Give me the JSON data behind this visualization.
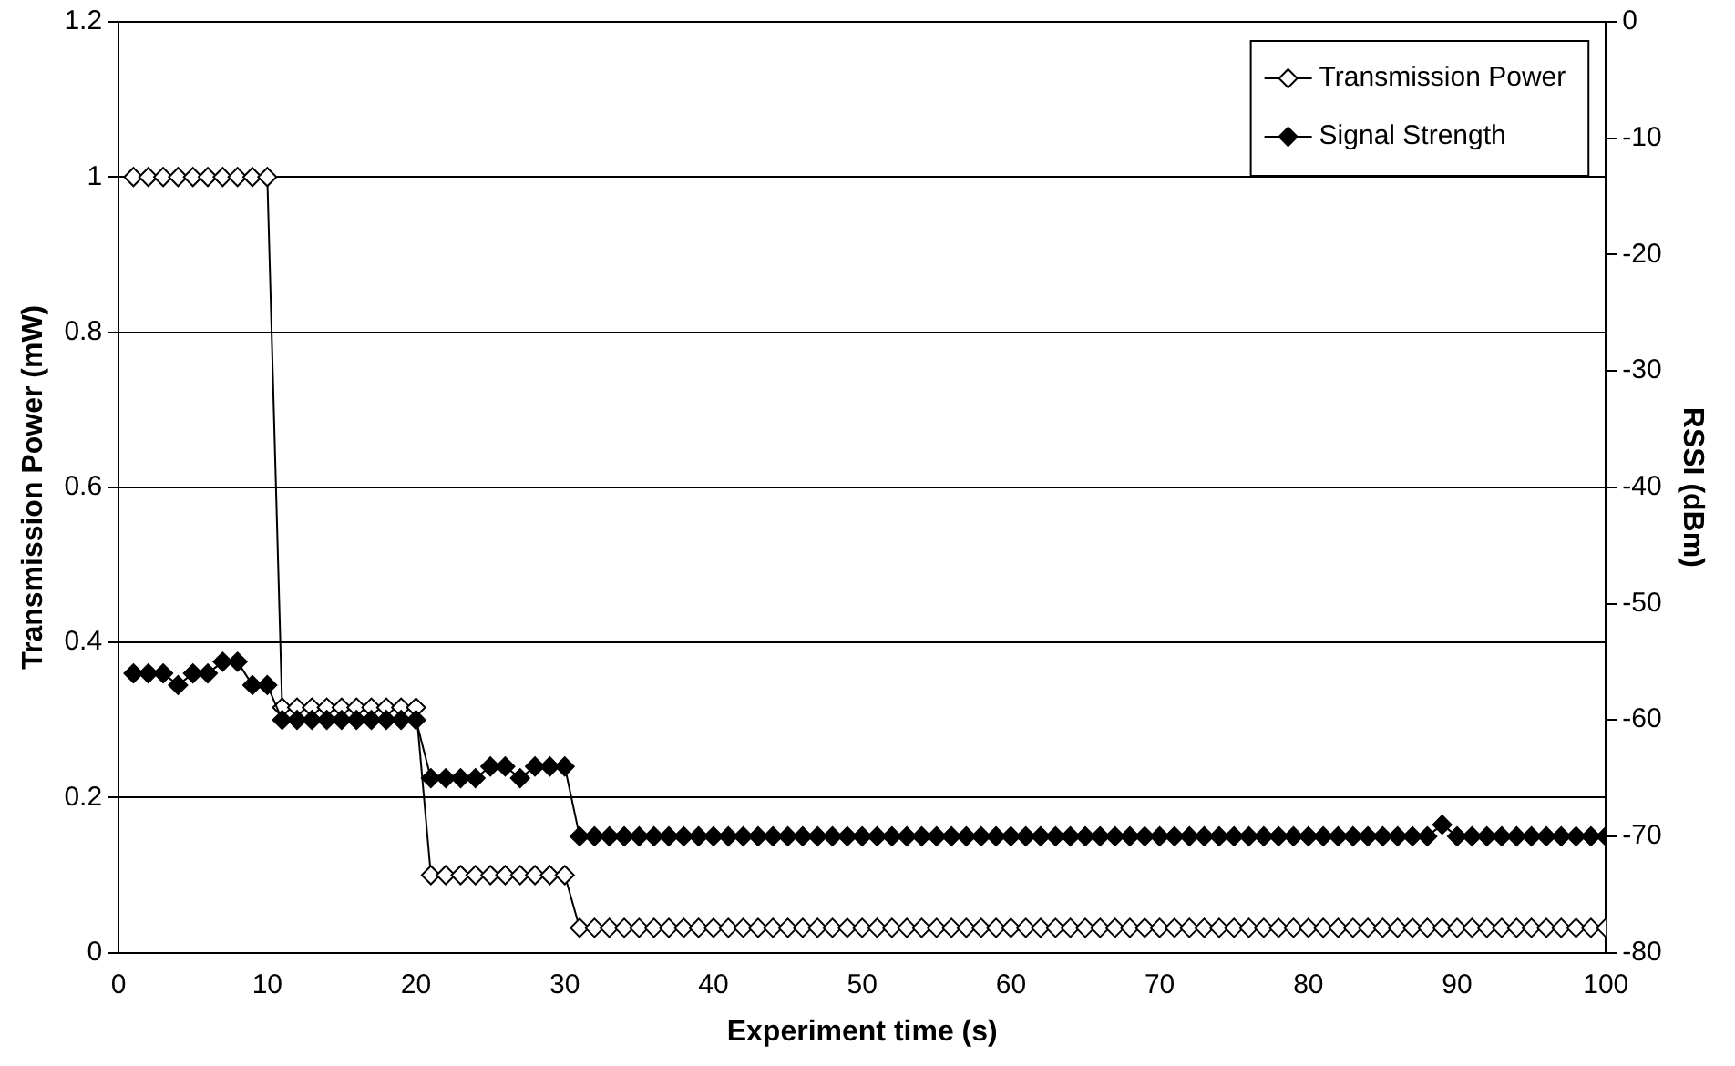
{
  "chart_data": {
    "type": "line",
    "xlabel": "Experiment time (s)",
    "ylabel": "Transmission Power (mW)",
    "y2label": "RSSI (dBm)",
    "x": [
      1,
      2,
      3,
      4,
      5,
      6,
      7,
      8,
      9,
      10,
      11,
      12,
      13,
      14,
      15,
      16,
      17,
      18,
      19,
      20,
      21,
      22,
      23,
      24,
      25,
      26,
      27,
      28,
      29,
      30,
      31,
      32,
      33,
      34,
      35,
      36,
      37,
      38,
      39,
      40,
      41,
      42,
      43,
      44,
      45,
      46,
      47,
      48,
      49,
      50,
      51,
      52,
      53,
      54,
      55,
      56,
      57,
      58,
      59,
      60,
      61,
      62,
      63,
      64,
      65,
      66,
      67,
      68,
      69,
      70,
      71,
      72,
      73,
      74,
      75,
      76,
      77,
      78,
      79,
      80,
      81,
      82,
      83,
      84,
      85,
      86,
      87,
      88,
      89,
      90,
      91,
      92,
      93,
      94,
      95,
      96,
      97,
      98,
      99,
      100
    ],
    "series": [
      {
        "name": "Transmission Power",
        "color": "#000000",
        "marker": "diamond",
        "values": [
          1,
          1,
          1,
          1,
          1,
          1,
          1,
          1,
          1,
          1,
          0.316,
          0.316,
          0.316,
          0.316,
          0.316,
          0.316,
          0.316,
          0.316,
          0.316,
          0.316,
          0.1,
          0.1,
          0.1,
          0.1,
          0.1,
          0.1,
          0.1,
          0.1,
          0.1,
          0.1,
          0.032,
          0.032,
          0.032,
          0.032,
          0.032,
          0.032,
          0.032,
          0.032,
          0.032,
          0.032,
          0.032,
          0.032,
          0.032,
          0.032,
          0.032,
          0.032,
          0.032,
          0.032,
          0.032,
          0.032,
          0.032,
          0.032,
          0.032,
          0.032,
          0.032,
          0.032,
          0.032,
          0.032,
          0.032,
          0.032,
          0.032,
          0.032,
          0.032,
          0.032,
          0.032,
          0.032,
          0.032,
          0.032,
          0.032,
          0.032,
          0.032,
          0.032,
          0.032,
          0.032,
          0.032,
          0.032,
          0.032,
          0.032,
          0.032,
          0.032,
          0.032,
          0.032,
          0.032,
          0.032,
          0.032,
          0.032,
          0.032,
          0.032,
          0.032,
          0.032,
          0.032,
          0.032,
          0.032,
          0.032,
          0.032,
          0.032,
          0.032,
          0.032,
          0.032,
          0.032
        ]
      },
      {
        "name": "Signal Strength",
        "color": "#000000",
        "marker": "diamond",
        "axis": "y2",
        "values": [
          -56,
          -56,
          -56,
          -57,
          -56,
          -56,
          -55,
          -55,
          -57,
          -57,
          -60,
          -60,
          -60,
          -60,
          -60,
          -60,
          -60,
          -60,
          -60,
          -60,
          -65,
          -65,
          -65,
          -65,
          -64,
          -64,
          -65,
          -64,
          -64,
          -64,
          -70,
          -70,
          -70,
          -70,
          -70,
          -70,
          -70,
          -70,
          -70,
          -70,
          -70,
          -70,
          -70,
          -70,
          -70,
          -70,
          -70,
          -70,
          -70,
          -70,
          -70,
          -70,
          -70,
          -70,
          -70,
          -70,
          -70,
          -70,
          -70,
          -70,
          -70,
          -70,
          -70,
          -70,
          -70,
          -70,
          -70,
          -70,
          -70,
          -70,
          -70,
          -70,
          -70,
          -70,
          -70,
          -70,
          -70,
          -70,
          -70,
          -70,
          -70,
          -70,
          -70,
          -70,
          -70,
          -70,
          -70,
          -70,
          -69,
          -70,
          -70,
          -70,
          -70,
          -70,
          -70,
          -70,
          -70,
          -70,
          -70,
          -70
        ]
      }
    ],
    "xlim": [
      0,
      100
    ],
    "xticks": [
      0,
      10,
      20,
      30,
      40,
      50,
      60,
      70,
      80,
      90,
      100
    ],
    "ylim": [
      0,
      1.2
    ],
    "yticks": [
      0,
      0.2,
      0.4,
      0.6,
      0.8,
      1,
      1.2
    ],
    "y2lim": [
      -80,
      0
    ],
    "y2ticks": [
      -80,
      -70,
      -60,
      -50,
      -40,
      -30,
      -20,
      -10,
      0
    ],
    "grid": "y",
    "legend": "top right",
    "line_style": "solid"
  }
}
